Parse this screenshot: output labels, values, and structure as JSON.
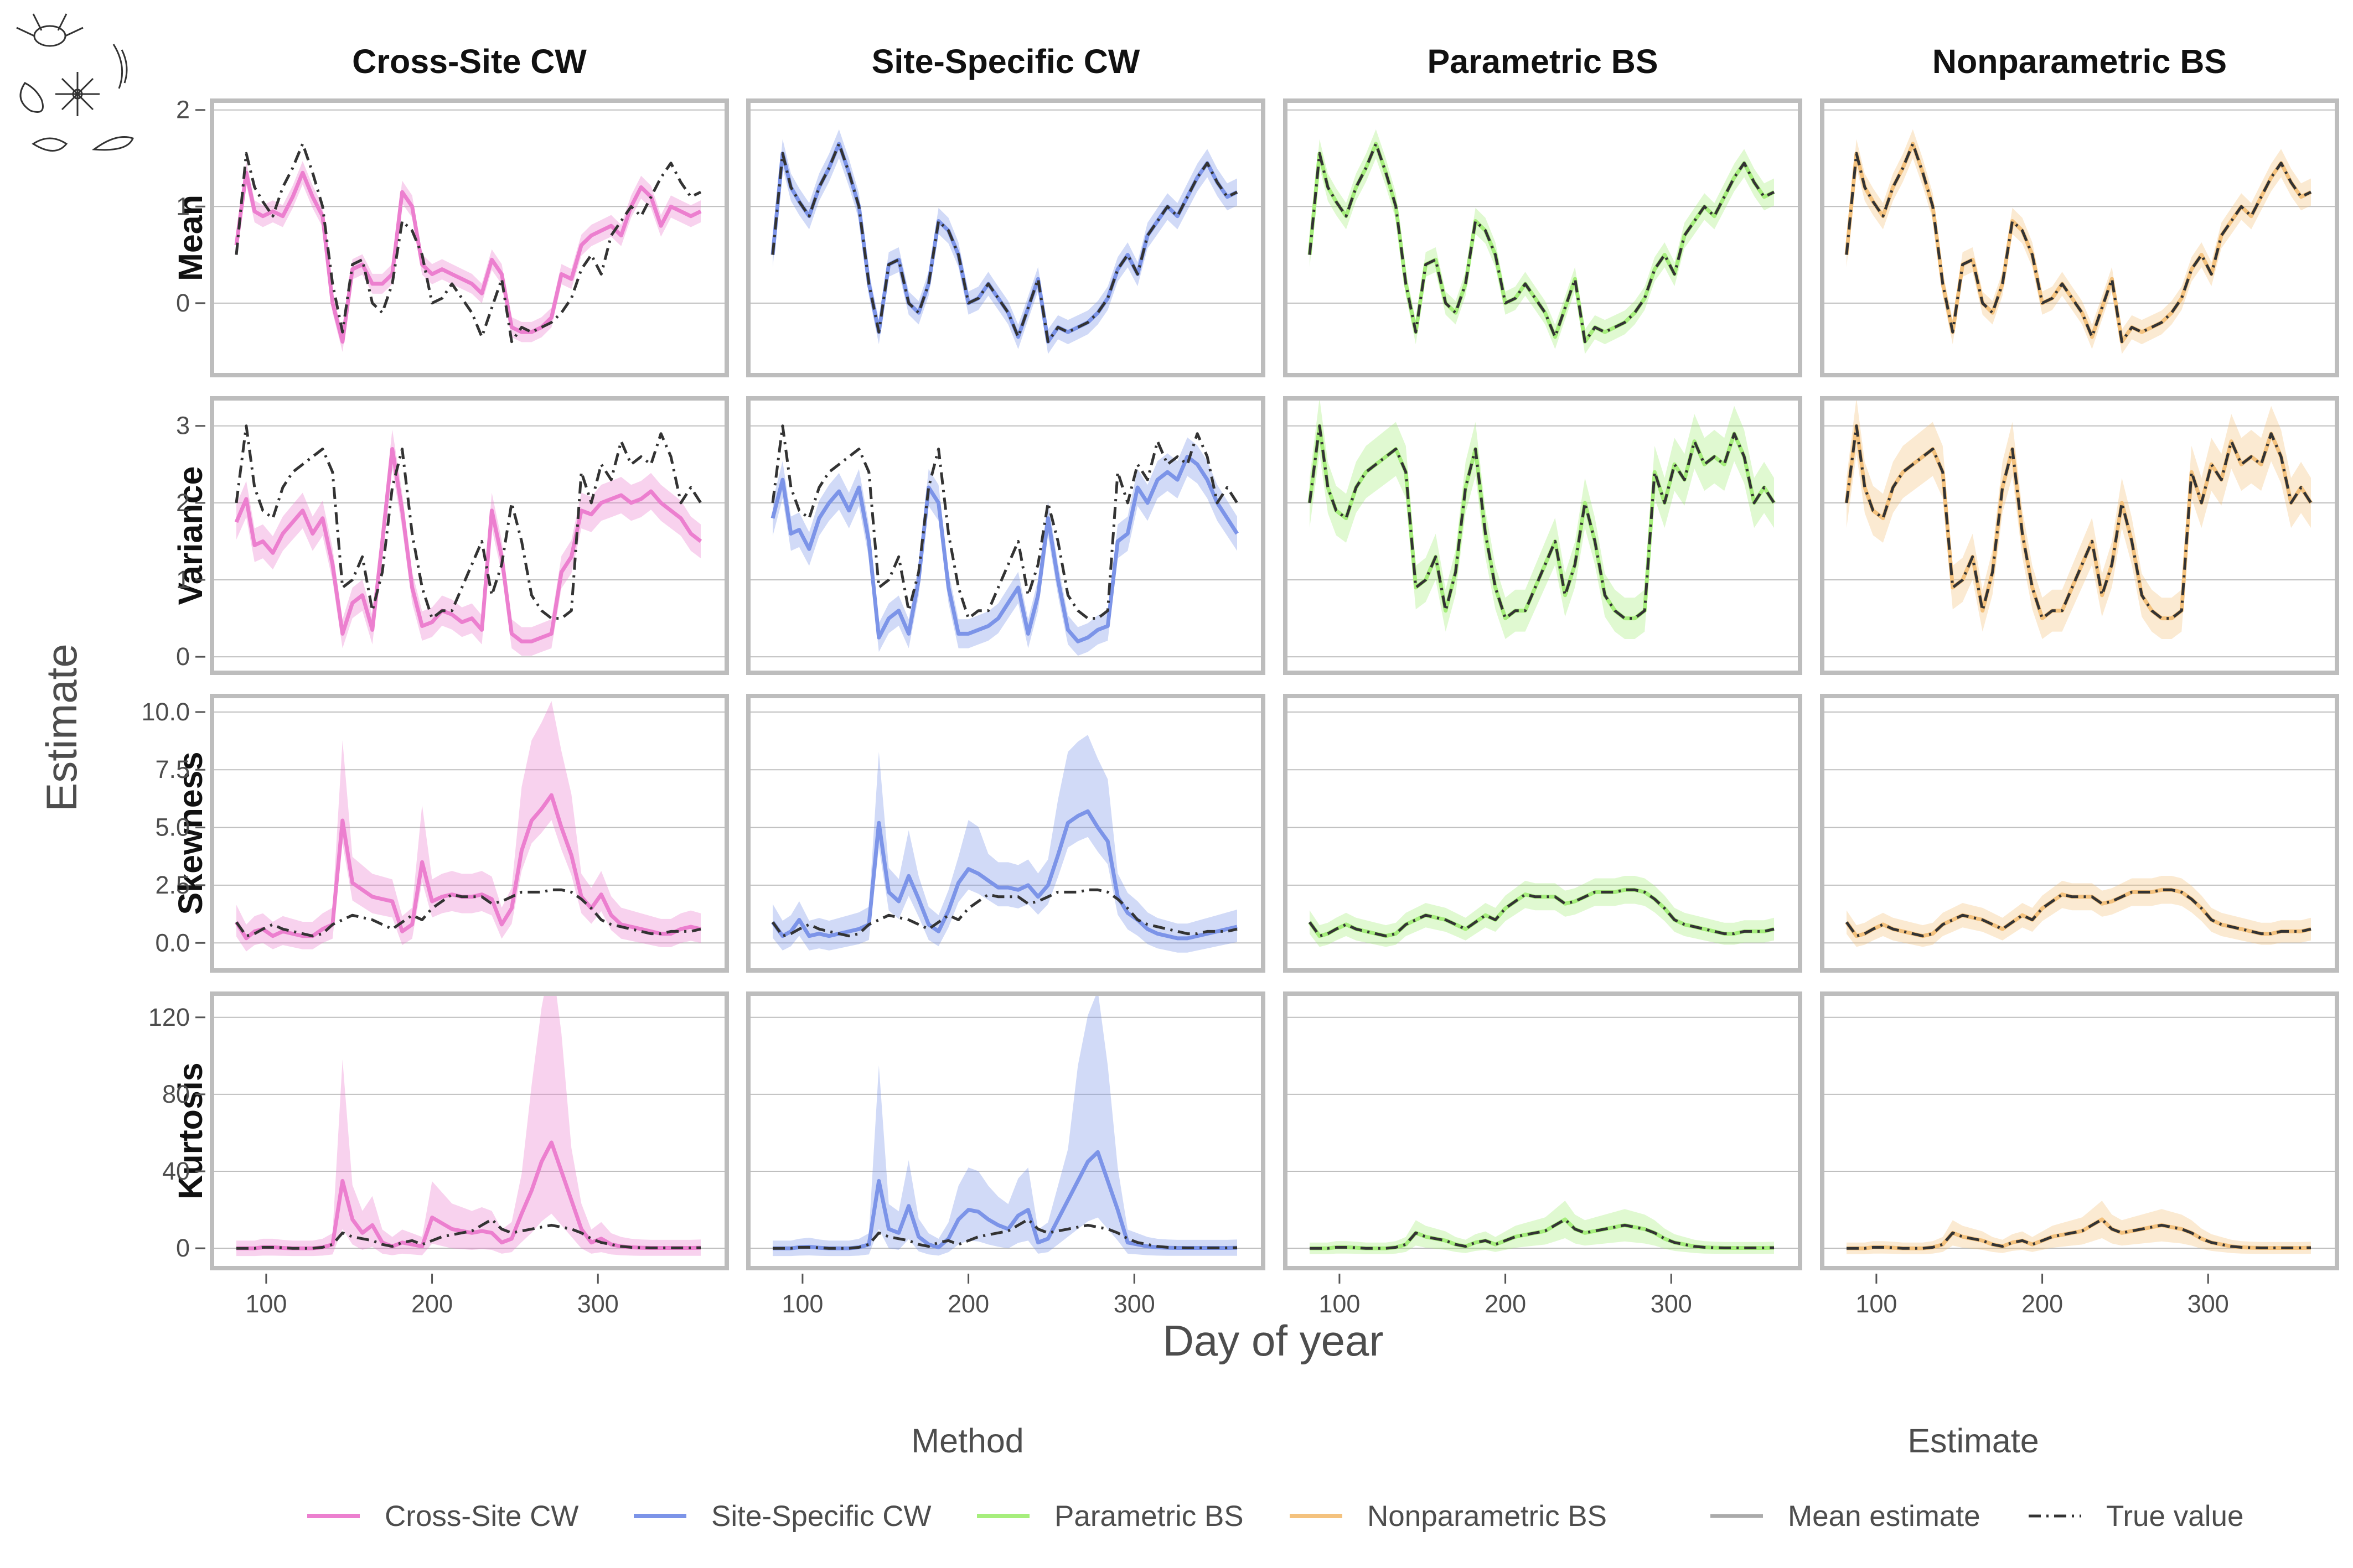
{
  "chart_data": {
    "type": "line",
    "xlabel": "Day of year",
    "ylabel": "Estimate",
    "xticks": [
      100,
      200,
      300
    ],
    "xlim": [
      70,
      375
    ],
    "methods": [
      "Cross-Site CW",
      "Site-Specific CW",
      "Parametric BS",
      "Nonparametric BS"
    ],
    "rows": [
      "Mean",
      "Variance",
      "Skewness",
      "Kurtosis"
    ],
    "row_axes": [
      {
        "ylim": [
          -0.7,
          2.05
        ],
        "ticks": [
          0,
          1,
          2
        ],
        "tick_labels": [
          "0",
          "1",
          "2"
        ]
      },
      {
        "ylim": [
          -0.15,
          3.3
        ],
        "ticks": [
          0,
          1,
          2,
          3
        ],
        "tick_labels": [
          "0",
          "1",
          "2",
          "3"
        ]
      },
      {
        "ylim": [
          -1.0,
          10.5
        ],
        "ticks": [
          0,
          2.5,
          5,
          7.5,
          10
        ],
        "tick_labels": [
          "0.0",
          "2.5",
          "5.0",
          "7.5",
          "10.0"
        ]
      },
      {
        "ylim": [
          -8,
          130
        ],
        "ticks": [
          0,
          40,
          80,
          120
        ],
        "tick_labels": [
          "0",
          "40",
          "80",
          "120"
        ]
      }
    ],
    "x": [
      82,
      88,
      93,
      98,
      104,
      110,
      116,
      122,
      128,
      134,
      140,
      146,
      152,
      158,
      164,
      170,
      176,
      182,
      188,
      194,
      200,
      206,
      212,
      218,
      224,
      230,
      236,
      242,
      248,
      254,
      260,
      266,
      272,
      278,
      284,
      290,
      296,
      302,
      308,
      314,
      320,
      326,
      332,
      338,
      344,
      350,
      356,
      362
    ],
    "true_value": {
      "Mean": [
        0.5,
        1.55,
        1.2,
        1.05,
        0.9,
        1.2,
        1.4,
        1.65,
        1.35,
        1.0,
        0.2,
        -0.3,
        0.4,
        0.45,
        0.0,
        -0.1,
        0.2,
        0.85,
        0.75,
        0.5,
        0.0,
        0.05,
        0.2,
        0.05,
        -0.1,
        -0.35,
        -0.05,
        0.25,
        -0.4,
        -0.25,
        -0.3,
        -0.25,
        -0.2,
        -0.1,
        0.05,
        0.35,
        0.5,
        0.3,
        0.7,
        0.85,
        1.0,
        0.9,
        1.1,
        1.3,
        1.45,
        1.25,
        1.1,
        1.15
      ],
      "Variance": [
        2.0,
        3.0,
        2.2,
        1.9,
        1.8,
        2.2,
        2.4,
        2.5,
        2.6,
        2.7,
        2.4,
        0.9,
        1.0,
        1.3,
        0.6,
        1.1,
        2.2,
        2.7,
        1.6,
        0.9,
        0.5,
        0.6,
        0.6,
        0.9,
        1.2,
        1.5,
        0.8,
        1.2,
        2.0,
        1.5,
        0.8,
        0.6,
        0.5,
        0.5,
        0.6,
        2.4,
        2.0,
        2.5,
        2.3,
        2.8,
        2.5,
        2.6,
        2.5,
        2.9,
        2.6,
        2.0,
        2.2,
        2.0
      ],
      "Skewness": [
        0.9,
        0.3,
        0.4,
        0.6,
        0.8,
        0.6,
        0.5,
        0.4,
        0.3,
        0.4,
        0.8,
        1.0,
        1.2,
        1.1,
        1.0,
        0.8,
        0.6,
        0.9,
        1.2,
        1.0,
        1.5,
        1.8,
        2.1,
        2.0,
        2.0,
        2.0,
        1.7,
        1.8,
        2.0,
        2.2,
        2.2,
        2.2,
        2.3,
        2.3,
        2.2,
        1.9,
        1.5,
        1.0,
        0.8,
        0.7,
        0.6,
        0.5,
        0.4,
        0.4,
        0.5,
        0.5,
        0.5,
        0.6
      ],
      "Kurtosis": [
        0,
        0,
        0,
        0.5,
        0.5,
        0.3,
        0,
        0,
        0,
        0.5,
        2,
        8,
        6,
        5,
        4,
        2,
        1,
        3,
        4,
        2,
        4,
        6,
        7,
        8,
        9,
        12,
        15,
        10,
        8,
        9,
        10,
        11,
        12,
        11,
        10,
        8,
        5,
        3,
        2,
        1,
        0.5,
        0.3,
        0.2,
        0.2,
        0.2,
        0.2,
        0.2,
        0.3
      ]
    },
    "series": [
      {
        "name": "Cross-Site CW",
        "color": "#ec7fcf",
        "mean": {
          "Mean": [
            0.6,
            1.35,
            0.95,
            0.9,
            0.95,
            0.9,
            1.1,
            1.35,
            1.1,
            0.9,
            0.0,
            -0.4,
            0.35,
            0.4,
            0.2,
            0.2,
            0.3,
            1.15,
            1.0,
            0.4,
            0.3,
            0.35,
            0.3,
            0.25,
            0.2,
            0.1,
            0.45,
            0.3,
            -0.25,
            -0.3,
            -0.3,
            -0.25,
            -0.15,
            0.3,
            0.25,
            0.6,
            0.7,
            0.75,
            0.8,
            0.7,
            1.0,
            1.2,
            1.1,
            0.8,
            1.0,
            0.95,
            0.9,
            0.95
          ],
          "Variance": [
            1.75,
            2.05,
            1.45,
            1.5,
            1.35,
            1.6,
            1.75,
            1.9,
            1.6,
            1.8,
            1.2,
            0.3,
            0.7,
            0.8,
            0.35,
            1.5,
            2.7,
            1.9,
            0.9,
            0.4,
            0.45,
            0.6,
            0.55,
            0.45,
            0.5,
            0.35,
            1.9,
            1.3,
            0.3,
            0.2,
            0.2,
            0.25,
            0.3,
            1.1,
            1.3,
            1.9,
            1.85,
            2.0,
            2.05,
            2.1,
            2.0,
            2.05,
            2.15,
            2.0,
            1.9,
            1.8,
            1.6,
            1.5
          ],
          "Skewness": [
            0.9,
            0.2,
            0.5,
            0.6,
            0.3,
            0.5,
            0.4,
            0.3,
            0.3,
            0.6,
            0.8,
            5.3,
            2.6,
            2.3,
            2.0,
            1.9,
            1.8,
            0.5,
            0.8,
            3.5,
            1.8,
            2.0,
            2.1,
            2.0,
            2.0,
            2.1,
            1.9,
            0.8,
            1.5,
            4.0,
            5.3,
            5.8,
            6.4,
            5.0,
            3.8,
            2.0,
            1.5,
            2.1,
            1.2,
            0.8,
            0.7,
            0.6,
            0.5,
            0.4,
            0.4,
            0.6,
            0.7,
            0.6
          ],
          "Kurtosis": [
            0,
            0,
            0,
            0.5,
            0.5,
            0.2,
            0,
            0,
            0,
            0.5,
            2,
            35,
            15,
            8,
            12,
            3,
            1,
            3,
            2,
            1,
            16,
            13,
            10,
            9,
            8,
            9,
            8,
            3,
            5,
            18,
            30,
            45,
            55,
            40,
            25,
            10,
            3,
            5,
            2,
            1,
            0.5,
            0.3,
            0.2,
            0.2,
            0.2,
            0.2,
            0.2,
            0.3
          ]
        }
      },
      {
        "name": "Site-Specific CW",
        "color": "#7c94e8",
        "mean": {
          "Mean": [
            0.5,
            1.55,
            1.2,
            1.05,
            0.9,
            1.2,
            1.4,
            1.65,
            1.35,
            1.0,
            0.2,
            -0.3,
            0.4,
            0.45,
            0.0,
            -0.1,
            0.2,
            0.85,
            0.75,
            0.5,
            0.0,
            0.05,
            0.2,
            0.05,
            -0.1,
            -0.35,
            -0.05,
            0.25,
            -0.4,
            -0.25,
            -0.3,
            -0.25,
            -0.2,
            -0.1,
            0.05,
            0.35,
            0.5,
            0.3,
            0.7,
            0.85,
            1.0,
            0.9,
            1.1,
            1.3,
            1.45,
            1.25,
            1.1,
            1.15
          ],
          "Variance": [
            1.8,
            2.3,
            1.6,
            1.65,
            1.4,
            1.8,
            2.0,
            2.15,
            1.9,
            2.2,
            1.5,
            0.25,
            0.5,
            0.6,
            0.3,
            1.0,
            2.2,
            2.0,
            0.9,
            0.3,
            0.3,
            0.35,
            0.4,
            0.5,
            0.7,
            0.9,
            0.3,
            0.8,
            1.8,
            1.0,
            0.35,
            0.2,
            0.25,
            0.35,
            0.4,
            1.5,
            1.6,
            2.2,
            2.0,
            2.3,
            2.4,
            2.3,
            2.6,
            2.5,
            2.3,
            2.0,
            1.8,
            1.6
          ],
          "Skewness": [
            0.9,
            0.3,
            0.5,
            1.0,
            0.3,
            0.4,
            0.3,
            0.4,
            0.5,
            0.6,
            0.8,
            5.2,
            2.2,
            1.8,
            2.9,
            1.9,
            0.8,
            0.5,
            1.4,
            2.6,
            3.2,
            3.0,
            2.7,
            2.4,
            2.4,
            2.3,
            2.5,
            2.0,
            2.5,
            3.8,
            5.2,
            5.5,
            5.7,
            5.0,
            4.4,
            2.0,
            1.3,
            1.0,
            0.6,
            0.4,
            0.3,
            0.2,
            0.2,
            0.3,
            0.4,
            0.5,
            0.6,
            0.7
          ],
          "Kurtosis": [
            0,
            0,
            0,
            0.5,
            0.8,
            0.3,
            0,
            0,
            0,
            0.5,
            2,
            35,
            10,
            8,
            22,
            6,
            2,
            0.5,
            5,
            15,
            20,
            19,
            15,
            12,
            10,
            17,
            20,
            3,
            5,
            15,
            25,
            35,
            45,
            50,
            35,
            20,
            3,
            2,
            1,
            0.5,
            0.3,
            0.2,
            0.2,
            0.2,
            0.2,
            0.2,
            0.2,
            0.3
          ]
        }
      },
      {
        "name": "Parametric BS",
        "color": "#a6ee7c",
        "mean": {
          "Mean": [
            0.5,
            1.55,
            1.2,
            1.05,
            0.9,
            1.2,
            1.4,
            1.65,
            1.35,
            1.0,
            0.2,
            -0.3,
            0.4,
            0.45,
            0.0,
            -0.1,
            0.2,
            0.85,
            0.75,
            0.5,
            0.0,
            0.05,
            0.2,
            0.05,
            -0.1,
            -0.35,
            -0.05,
            0.25,
            -0.4,
            -0.25,
            -0.3,
            -0.25,
            -0.2,
            -0.1,
            0.05,
            0.35,
            0.5,
            0.3,
            0.7,
            0.85,
            1.0,
            0.9,
            1.1,
            1.3,
            1.45,
            1.25,
            1.1,
            1.15
          ],
          "Variance": [
            2.0,
            3.0,
            2.2,
            1.9,
            1.8,
            2.2,
            2.4,
            2.5,
            2.6,
            2.7,
            2.4,
            0.9,
            1.0,
            1.3,
            0.6,
            1.1,
            2.2,
            2.7,
            1.6,
            0.9,
            0.5,
            0.6,
            0.6,
            0.9,
            1.2,
            1.5,
            0.8,
            1.2,
            2.0,
            1.5,
            0.8,
            0.6,
            0.5,
            0.5,
            0.6,
            2.4,
            2.0,
            2.5,
            2.3,
            2.8,
            2.5,
            2.6,
            2.5,
            2.9,
            2.6,
            2.0,
            2.2,
            2.0
          ],
          "Skewness": [
            0.9,
            0.3,
            0.4,
            0.6,
            0.8,
            0.6,
            0.5,
            0.4,
            0.3,
            0.4,
            0.8,
            1.0,
            1.2,
            1.1,
            1.0,
            0.8,
            0.6,
            0.9,
            1.2,
            1.0,
            1.5,
            1.8,
            2.1,
            2.0,
            2.0,
            2.0,
            1.7,
            1.8,
            2.0,
            2.2,
            2.2,
            2.2,
            2.3,
            2.3,
            2.2,
            1.9,
            1.5,
            1.0,
            0.8,
            0.7,
            0.6,
            0.5,
            0.4,
            0.4,
            0.5,
            0.5,
            0.5,
            0.6
          ],
          "Kurtosis": [
            0,
            0,
            0,
            0.5,
            0.5,
            0.3,
            0,
            0,
            0,
            0.5,
            2,
            8,
            6,
            5,
            4,
            2,
            1,
            3,
            4,
            2,
            4,
            6,
            7,
            8,
            9,
            12,
            15,
            10,
            8,
            9,
            10,
            11,
            12,
            11,
            10,
            8,
            5,
            3,
            2,
            1,
            0.5,
            0.3,
            0.2,
            0.2,
            0.2,
            0.2,
            0.2,
            0.3
          ]
        }
      },
      {
        "name": "Nonparametric BS",
        "color": "#f4c27e",
        "mean": {
          "Mean": [
            0.5,
            1.55,
            1.2,
            1.05,
            0.9,
            1.2,
            1.4,
            1.65,
            1.35,
            1.0,
            0.2,
            -0.3,
            0.4,
            0.45,
            0.0,
            -0.1,
            0.2,
            0.85,
            0.75,
            0.5,
            0.0,
            0.05,
            0.2,
            0.05,
            -0.1,
            -0.35,
            -0.05,
            0.25,
            -0.4,
            -0.25,
            -0.3,
            -0.25,
            -0.2,
            -0.1,
            0.05,
            0.35,
            0.5,
            0.3,
            0.7,
            0.85,
            1.0,
            0.9,
            1.1,
            1.3,
            1.45,
            1.25,
            1.1,
            1.15
          ],
          "Variance": [
            2.0,
            3.0,
            2.2,
            1.9,
            1.8,
            2.2,
            2.4,
            2.5,
            2.6,
            2.7,
            2.4,
            0.9,
            1.0,
            1.3,
            0.6,
            1.1,
            2.2,
            2.7,
            1.6,
            0.9,
            0.5,
            0.6,
            0.6,
            0.9,
            1.2,
            1.5,
            0.8,
            1.2,
            2.0,
            1.5,
            0.8,
            0.6,
            0.5,
            0.5,
            0.6,
            2.4,
            2.0,
            2.5,
            2.3,
            2.8,
            2.5,
            2.6,
            2.5,
            2.9,
            2.6,
            2.0,
            2.2,
            2.0
          ],
          "Skewness": [
            0.9,
            0.3,
            0.4,
            0.6,
            0.8,
            0.6,
            0.5,
            0.4,
            0.3,
            0.4,
            0.8,
            1.0,
            1.2,
            1.1,
            1.0,
            0.8,
            0.6,
            0.9,
            1.2,
            1.0,
            1.5,
            1.8,
            2.1,
            2.0,
            2.0,
            2.0,
            1.7,
            1.8,
            2.0,
            2.2,
            2.2,
            2.2,
            2.3,
            2.3,
            2.2,
            1.9,
            1.5,
            1.0,
            0.8,
            0.7,
            0.6,
            0.5,
            0.4,
            0.4,
            0.5,
            0.5,
            0.5,
            0.6
          ],
          "Kurtosis": [
            0,
            0,
            0,
            0.5,
            0.5,
            0.3,
            0,
            0,
            0,
            0.5,
            2,
            8,
            6,
            5,
            4,
            2,
            1,
            3,
            4,
            2,
            4,
            6,
            7,
            8,
            9,
            12,
            15,
            10,
            8,
            9,
            10,
            11,
            12,
            11,
            10,
            8,
            5,
            3,
            2,
            1,
            0.5,
            0.3,
            0.2,
            0.2,
            0.2,
            0.2,
            0.2,
            0.3
          ]
        }
      }
    ],
    "band_halfwidth": {
      "Cross-Site CW": {
        "Mean": 0.1,
        "Variance": 0.18,
        "Skewness": 0.55,
        "Kurtosis": 4
      },
      "Site-Specific CW": {
        "Mean": 0.12,
        "Variance": 0.18,
        "Skewness": 0.6,
        "Kurtosis": 4
      },
      "Parametric BS": {
        "Mean": 0.12,
        "Variance": 0.25,
        "Skewness": 0.45,
        "Kurtosis": 3
      },
      "Nonparametric BS": {
        "Mean": 0.12,
        "Variance": 0.25,
        "Skewness": 0.45,
        "Kurtosis": 3
      }
    },
    "band_peaks": {
      "Cross-Site CW": {
        "Skewness": 3.0,
        "Kurtosis": 60
      },
      "Site-Specific CW": {
        "Skewness": 2.2,
        "Kurtosis": 50
      }
    },
    "legend": {
      "method_title": "Method",
      "estimate_title": "Estimate",
      "methods": [
        "Cross-Site CW",
        "Site-Specific CW",
        "Parametric BS",
        "Nonparametric BS"
      ],
      "estimates": [
        "Mean estimate",
        "True value"
      ],
      "placement": "bottom"
    },
    "grid": true
  },
  "colors": {
    "frame": "#bdbdbd",
    "grid": "#bfbfbf",
    "true_line": "#333333"
  }
}
